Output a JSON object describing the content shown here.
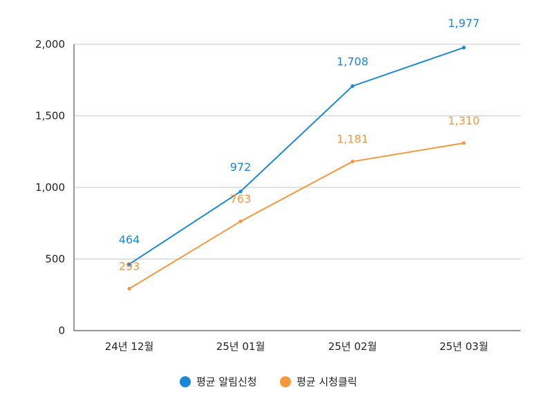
{
  "chart_data": {
    "type": "line",
    "categories": [
      "24년 12월",
      "25년 01월",
      "25년 02월",
      "25년 03월"
    ],
    "ylim": [
      0,
      2000
    ],
    "yticks": [
      0,
      500,
      1000,
      1500,
      2000
    ],
    "ytick_labels": [
      "0",
      "500",
      "1,000",
      "1,500",
      "2,000"
    ],
    "grid": true,
    "legend_position": "bottom",
    "series": [
      {
        "name": "평균 알림신청",
        "color": "#1b87d6",
        "values": [
          464,
          972,
          1708,
          1977
        ],
        "labels": [
          "464",
          "972",
          "1,708",
          "1,977"
        ]
      },
      {
        "name": "평균 시청클릭",
        "color": "#f7963b",
        "values": [
          293,
          763,
          1181,
          1310
        ],
        "labels": [
          "293",
          "763",
          "1,181",
          "1,310"
        ]
      }
    ]
  }
}
